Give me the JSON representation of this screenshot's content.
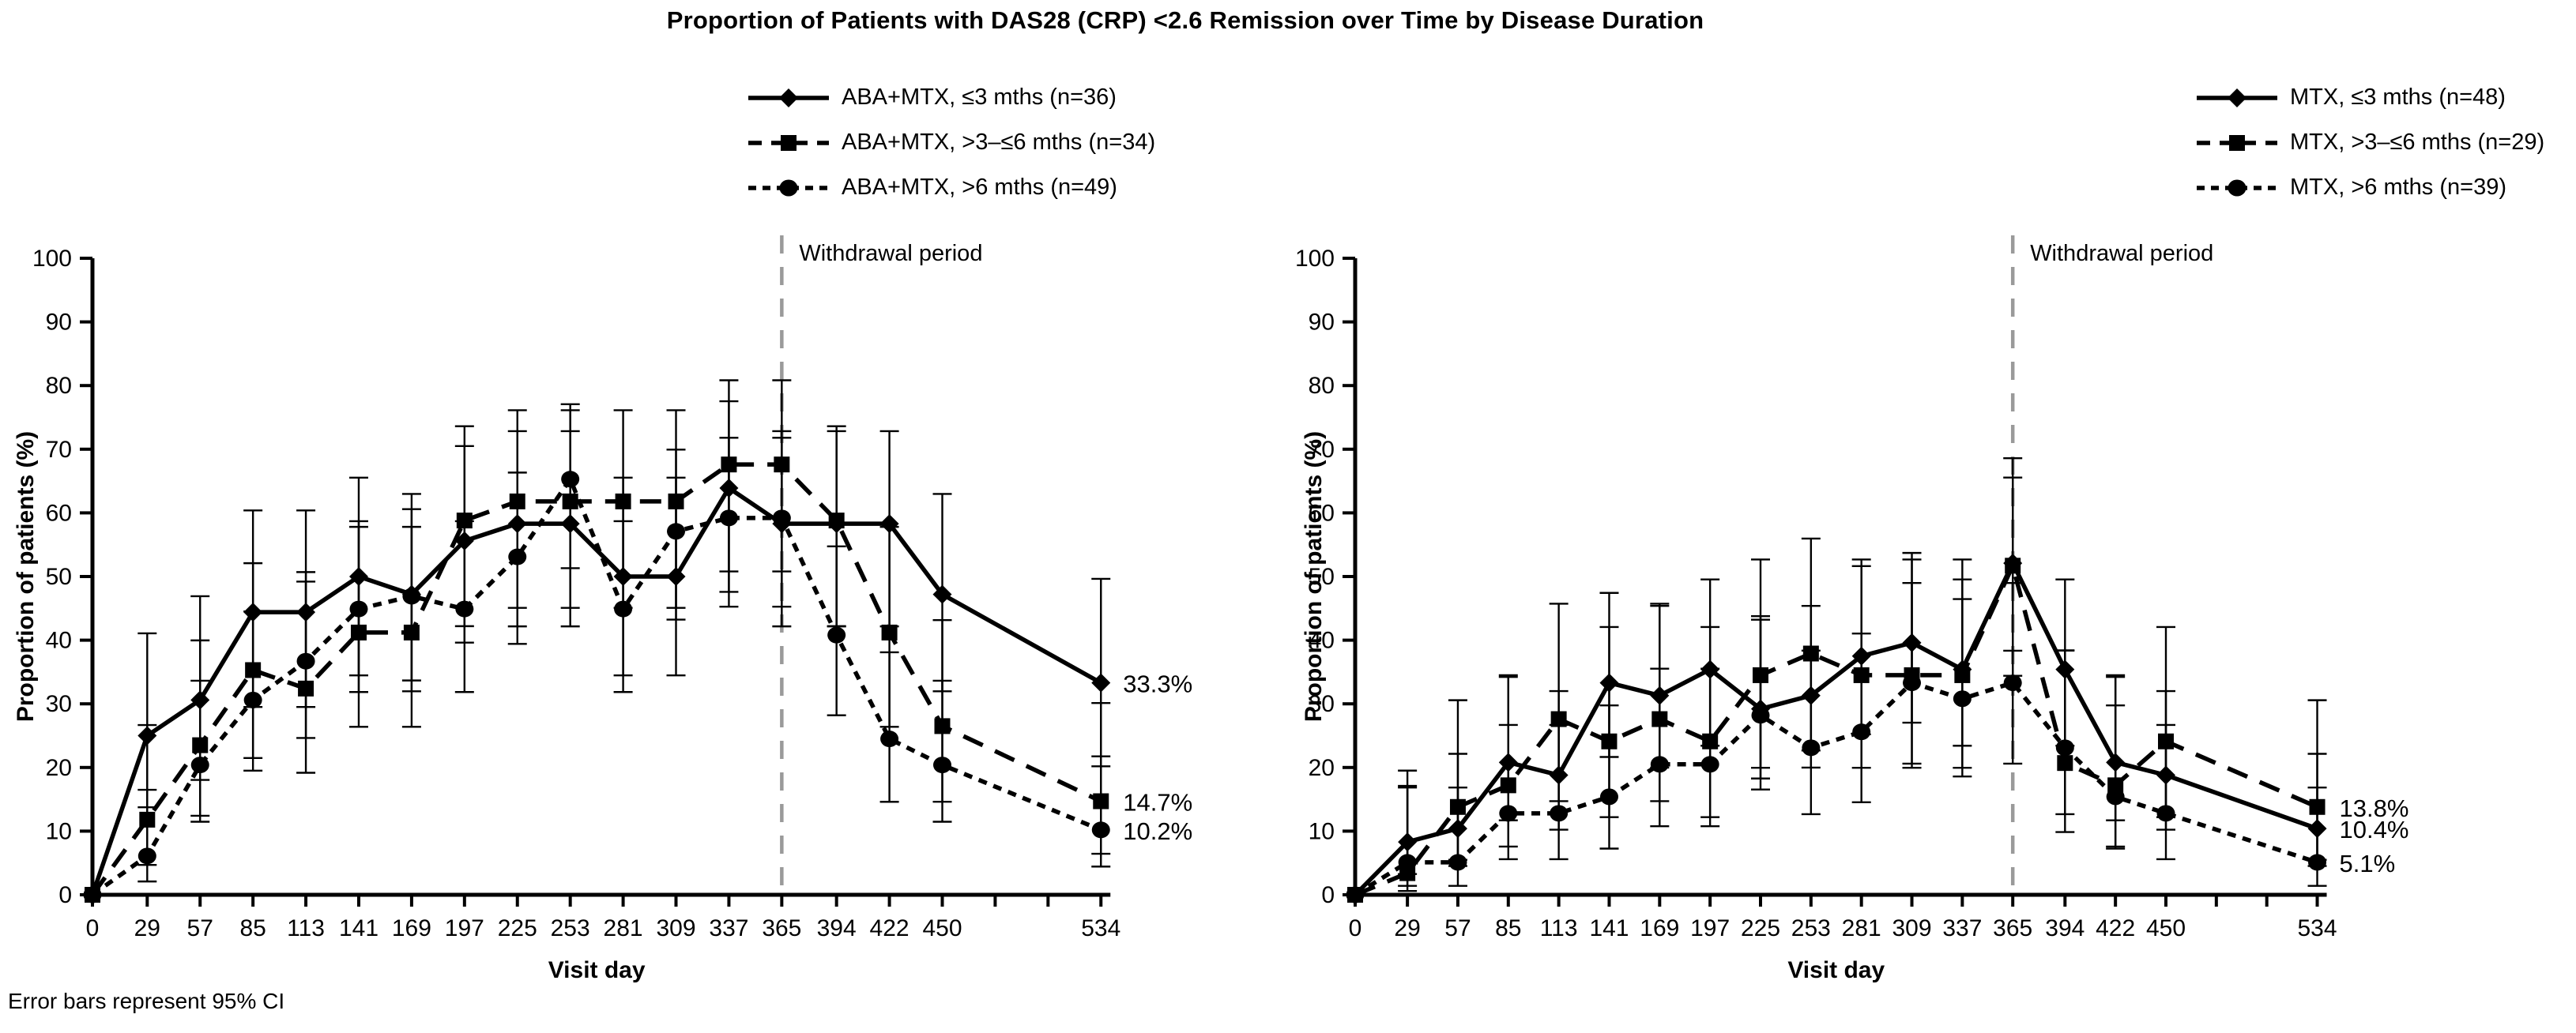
{
  "title": "Proportion of Patients with DAS28 (CRP) <2.6 Remission over Time by Disease Duration",
  "footnote": "Error bars represent 95% CI",
  "colors": {
    "line": "#000000",
    "withdrawal_line": "#9a9a9a",
    "text": "#000000"
  },
  "chart_data": [
    {
      "type": "line",
      "panel": "ABA+MTX",
      "xlabel": "Visit day",
      "ylabel": "Proportion of patients (%)",
      "ylim": [
        0,
        100
      ],
      "y_ticks": [
        0,
        10,
        20,
        30,
        40,
        50,
        60,
        70,
        80,
        90,
        100
      ],
      "x_days": [
        0,
        29,
        57,
        85,
        113,
        141,
        169,
        197,
        225,
        253,
        281,
        309,
        337,
        365,
        394,
        422,
        450,
        534
      ],
      "x_unlabeled_ticks": [
        478,
        506
      ],
      "grid": false,
      "withdrawal_day": 365,
      "withdrawal_label": "Withdrawal period",
      "error_bars": "95% CI",
      "legend_position": "top",
      "series": [
        {
          "name": "ABA+MTX, ≤3 mths (n=36)",
          "n": 36,
          "marker": "diamond",
          "line": "solid",
          "values": [
            0,
            25.0,
            30.6,
            44.4,
            44.4,
            50.0,
            47.2,
            55.6,
            58.3,
            58.3,
            50.0,
            50.0,
            63.9,
            58.3,
            58.3,
            58.3,
            47.2,
            33.3
          ],
          "end_label": "33.3%"
        },
        {
          "name": "ABA+MTX, >3–≤6 mths (n=34)",
          "n": 34,
          "marker": "square",
          "line": "dashed",
          "values": [
            0,
            11.8,
            23.5,
            35.3,
            32.4,
            41.2,
            41.2,
            58.8,
            61.8,
            61.8,
            61.8,
            61.8,
            67.6,
            67.6,
            58.8,
            41.2,
            26.5,
            14.7
          ],
          "end_label": "14.7%"
        },
        {
          "name": "ABA+MTX, >6 mths (n=49)",
          "n": 49,
          "marker": "circle",
          "line": "dotted",
          "values": [
            0,
            6.1,
            20.4,
            30.6,
            36.7,
            44.9,
            46.9,
            44.9,
            53.1,
            65.3,
            44.9,
            57.1,
            59.2,
            59.2,
            40.8,
            24.5,
            20.4,
            10.2
          ],
          "end_label": "10.2%"
        }
      ]
    },
    {
      "type": "line",
      "panel": "MTX",
      "xlabel": "Visit day",
      "ylabel": "Proportion of patients (%)",
      "ylim": [
        0,
        100
      ],
      "y_ticks": [
        0,
        10,
        20,
        30,
        40,
        50,
        60,
        70,
        80,
        90,
        100
      ],
      "x_days": [
        0,
        29,
        57,
        85,
        113,
        141,
        169,
        197,
        225,
        253,
        281,
        309,
        337,
        365,
        394,
        422,
        450,
        534
      ],
      "x_unlabeled_ticks": [
        478,
        506
      ],
      "grid": false,
      "withdrawal_day": 365,
      "withdrawal_label": "Withdrawal period",
      "error_bars": "95% CI",
      "legend_position": "top",
      "series": [
        {
          "name": "MTX, ≤3 mths (n=48)",
          "n": 48,
          "marker": "diamond",
          "line": "solid",
          "values": [
            0,
            8.3,
            10.4,
            20.8,
            18.8,
            33.3,
            31.3,
            35.4,
            29.2,
            31.3,
            37.5,
            39.6,
            35.4,
            52.1,
            35.4,
            20.8,
            18.8,
            10.4
          ],
          "end_label": "10.4%"
        },
        {
          "name": "MTX, >3–≤6 mths (n=29)",
          "n": 29,
          "marker": "square",
          "line": "dashed",
          "values": [
            0,
            3.4,
            13.8,
            17.2,
            27.6,
            24.1,
            27.6,
            24.1,
            34.5,
            37.9,
            34.5,
            34.5,
            34.5,
            51.7,
            20.7,
            17.2,
            24.1,
            13.8
          ],
          "end_label": "13.8%"
        },
        {
          "name": "MTX, >6 mths (n=39)",
          "n": 39,
          "marker": "circle",
          "line": "dotted",
          "values": [
            0,
            5.1,
            5.1,
            12.8,
            12.8,
            15.4,
            20.5,
            20.5,
            28.2,
            23.1,
            25.6,
            33.3,
            30.8,
            33.3,
            23.1,
            15.4,
            12.8,
            5.1
          ],
          "end_label": "5.1%"
        }
      ]
    }
  ]
}
